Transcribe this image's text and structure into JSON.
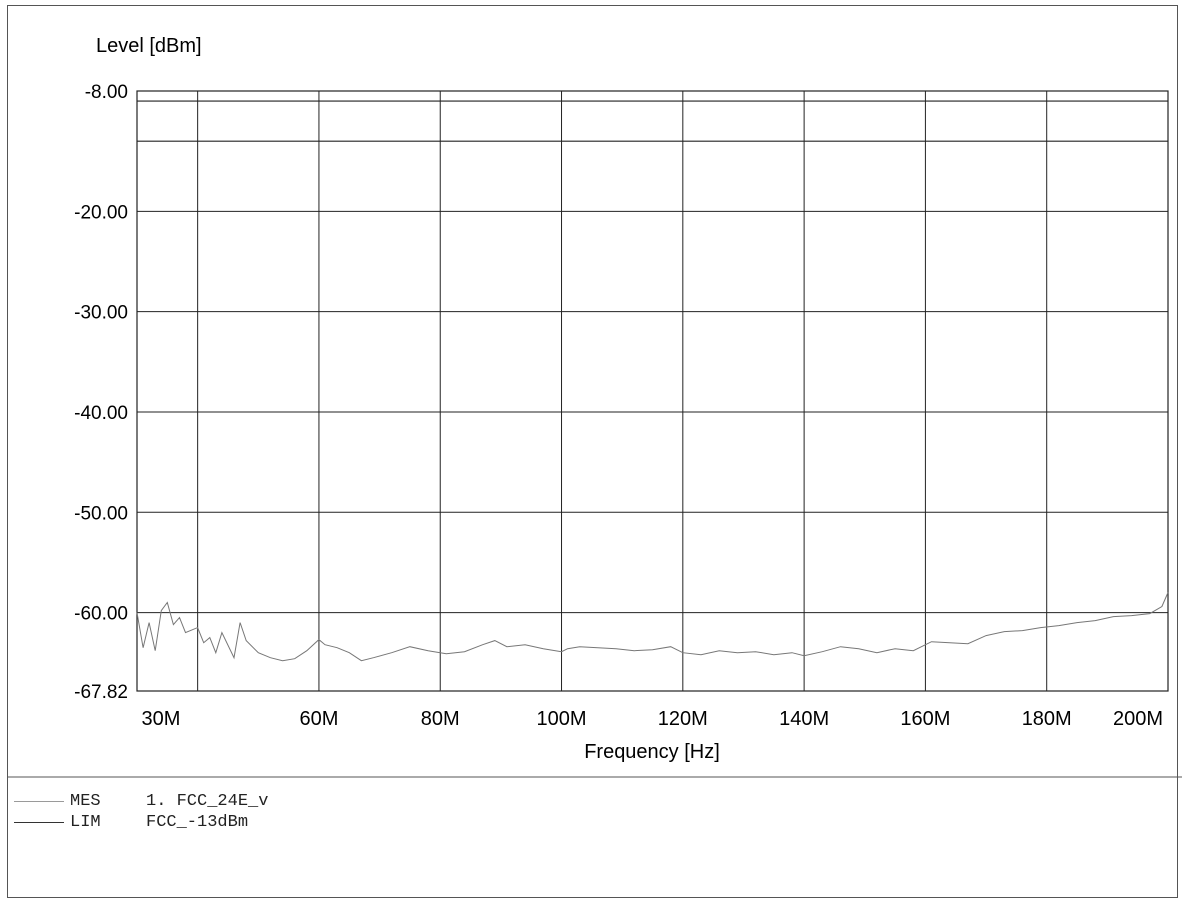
{
  "chart_data": {
    "type": "line",
    "title": "",
    "ylabel": "Level [dBm]",
    "xlabel": "Frequency [Hz]",
    "xlim": [
      30,
      200
    ],
    "ylim": [
      -67.82,
      -8.0
    ],
    "y_ticks": [
      -8.0,
      -20.0,
      -30.0,
      -40.0,
      -50.0,
      -60.0,
      -67.82
    ],
    "y_tick_labels": [
      "-8.00",
      "-20.00",
      "-30.00",
      "-40.00",
      "-50.00",
      "-60.00",
      "-67.82"
    ],
    "x_ticks": [
      30,
      40,
      60,
      80,
      100,
      120,
      140,
      160,
      180,
      200
    ],
    "x_tick_labels": [
      "30M",
      "",
      "60M",
      "80M",
      "100M",
      "120M",
      "140M",
      "160M",
      "180M",
      "200M"
    ],
    "grid": true,
    "limit_lines": [
      -9.0,
      -13.0
    ],
    "series": [
      {
        "name": "MES",
        "x": [
          30,
          31,
          32,
          33,
          34,
          35,
          36,
          37,
          38,
          40,
          41,
          42,
          43,
          44,
          46,
          47,
          48,
          50,
          52,
          54,
          56,
          58,
          60,
          61,
          63,
          65,
          67,
          69,
          72,
          75,
          78,
          81,
          84,
          87,
          89,
          91,
          94,
          97,
          100,
          101,
          103,
          106,
          109,
          112,
          115,
          118,
          120,
          123,
          126,
          129,
          132,
          135,
          138,
          140,
          143,
          146,
          149,
          152,
          155,
          158,
          161,
          164,
          167,
          170,
          173,
          176,
          179,
          182,
          185,
          188,
          191,
          194,
          197,
          199,
          200
        ],
        "values": [
          -60.0,
          -63.5,
          -61.0,
          -63.8,
          -59.8,
          -59.0,
          -61.2,
          -60.5,
          -62.0,
          -61.5,
          -63.0,
          -62.5,
          -64.0,
          -62.0,
          -64.5,
          -61.0,
          -62.8,
          -64.0,
          -64.5,
          -64.8,
          -64.6,
          -63.8,
          -62.7,
          -63.2,
          -63.5,
          -64.0,
          -64.8,
          -64.5,
          -64.0,
          -63.4,
          -63.8,
          -64.1,
          -63.9,
          -63.2,
          -62.8,
          -63.4,
          -63.2,
          -63.6,
          -63.9,
          -63.6,
          -63.4,
          -63.5,
          -63.6,
          -63.8,
          -63.7,
          -63.4,
          -64.0,
          -64.2,
          -63.8,
          -64.0,
          -63.9,
          -64.2,
          -64.0,
          -64.3,
          -63.9,
          -63.4,
          -63.6,
          -64.0,
          -63.6,
          -63.8,
          -62.9,
          -63.0,
          -63.1,
          -62.3,
          -61.9,
          -61.8,
          -61.5,
          -61.3,
          -61.0,
          -60.8,
          -60.4,
          -60.3,
          -60.1,
          -59.4,
          -58.0
        ]
      }
    ],
    "legend": [
      {
        "code": "MES",
        "text": "1. FCC_24E_v"
      },
      {
        "code": "LIM",
        "text": "FCC_-13dBm"
      }
    ]
  }
}
